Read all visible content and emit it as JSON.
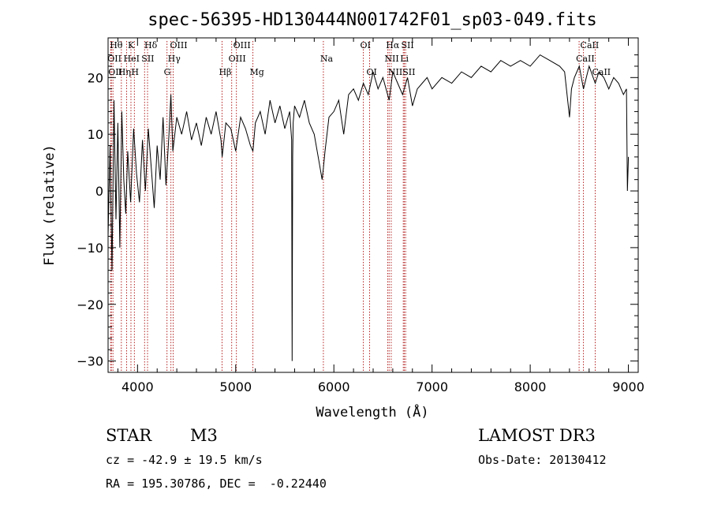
{
  "chart_data": {
    "type": "line",
    "title": "spec-56395-HD130444N001742F01_sp03-049.fits",
    "xlabel": "Wavelength (Å)",
    "ylabel": "Flux (relative)",
    "xlim": [
      3700,
      9100
    ],
    "ylim": [
      -32,
      27
    ],
    "xticks": [
      4000,
      5000,
      6000,
      7000,
      8000,
      9000
    ],
    "yticks": [
      -30,
      -20,
      -10,
      0,
      10,
      20
    ],
    "grid": false,
    "series": [
      {
        "x": [
          3700,
          3720,
          3740,
          3760,
          3780,
          3800,
          3820,
          3840,
          3860,
          3880,
          3900,
          3930,
          3960,
          3990,
          4020,
          4050,
          4080,
          4110,
          4140,
          4170,
          4200,
          4230,
          4260,
          4290,
          4320,
          4340,
          4360,
          4400,
          4450,
          4500,
          4550,
          4600,
          4650,
          4700,
          4750,
          4800,
          4850,
          4862,
          4900,
          4950,
          5000,
          5050,
          5100,
          5150,
          5175,
          5200,
          5250,
          5300,
          5350,
          5400,
          5450,
          5500,
          5550,
          5570,
          5575,
          5580,
          5585,
          5600,
          5650,
          5700,
          5750,
          5800,
          5850,
          5880,
          5893,
          5910,
          5950,
          6000,
          6050,
          6100,
          6150,
          6200,
          6250,
          6300,
          6350,
          6400,
          6450,
          6500,
          6563,
          6600,
          6650,
          6700,
          6750,
          6800,
          6850,
          6900,
          6950,
          7000,
          7100,
          7200,
          7300,
          7400,
          7500,
          7600,
          7700,
          7800,
          7900,
          8000,
          8100,
          8200,
          8300,
          8350,
          8400,
          8420,
          8450,
          8500,
          8542,
          8600,
          8662,
          8700,
          8750,
          8800,
          8850,
          8900,
          8950,
          8980,
          8990,
          9000
        ],
        "y": [
          -8,
          8,
          -14,
          16,
          -5,
          12,
          -10,
          14,
          2,
          -4,
          7,
          -2,
          11,
          3,
          -2,
          9,
          0,
          11,
          4,
          -3,
          8,
          2,
          13,
          1,
          10,
          17,
          7,
          13,
          10,
          14,
          9,
          12,
          8,
          13,
          10,
          14,
          9,
          6,
          12,
          11,
          7,
          13,
          11,
          8,
          7,
          12,
          14,
          10,
          16,
          12,
          15,
          11,
          14,
          9,
          -30,
          6,
          12,
          15,
          13,
          16,
          12,
          10,
          5,
          2,
          4,
          7,
          13,
          14,
          16,
          10,
          17,
          18,
          16,
          19,
          17,
          21,
          18,
          20,
          16,
          21,
          19,
          17,
          20,
          15,
          18,
          19,
          20,
          18,
          20,
          19,
          21,
          20,
          22,
          21,
          23,
          22,
          23,
          22,
          24,
          23,
          22,
          21,
          13,
          18,
          20,
          22,
          18,
          22,
          19,
          21,
          20,
          18,
          20,
          19,
          17,
          18,
          0,
          6
        ]
      }
    ],
    "lines": [
      {
        "x": 3750,
        "label": "Hθ",
        "row": 0
      },
      {
        "x": 3726,
        "label": "OII",
        "row": 1
      },
      {
        "x": 3734,
        "label": "OII",
        "row": 2
      },
      {
        "x": 3835,
        "label": "Hη",
        "row": 2
      },
      {
        "x": 3889,
        "label": "HeI",
        "row": 1
      },
      {
        "x": 3933,
        "label": "K",
        "row": 0
      },
      {
        "x": 3968,
        "label": "H",
        "row": 2
      },
      {
        "x": 4072,
        "label": "SII",
        "row": 1
      },
      {
        "x": 4102,
        "label": "Hδ",
        "row": 0
      },
      {
        "x": 4300,
        "label": "G",
        "row": 2
      },
      {
        "x": 4340,
        "label": "Hγ",
        "row": 1
      },
      {
        "x": 4363,
        "label": "OIII",
        "row": 0
      },
      {
        "x": 4861,
        "label": "Hβ",
        "row": 2
      },
      {
        "x": 4959,
        "label": "OIII",
        "row": 1
      },
      {
        "x": 5007,
        "label": "OIII",
        "row": 0
      },
      {
        "x": 5175,
        "label": "Mg",
        "row": 2
      },
      {
        "x": 5893,
        "label": "Na",
        "row": 1
      },
      {
        "x": 6300,
        "label": "OI",
        "row": 0
      },
      {
        "x": 6364,
        "label": "OI",
        "row": 2
      },
      {
        "x": 6548,
        "label": "NII",
        "row": 1
      },
      {
        "x": 6563,
        "label": "Hα",
        "row": 0
      },
      {
        "x": 6584,
        "label": "NII",
        "row": 2
      },
      {
        "x": 6707,
        "label": "Li",
        "row": 1
      },
      {
        "x": 6717,
        "label": "SII",
        "row": 0
      },
      {
        "x": 6731,
        "label": "SII",
        "row": 2
      },
      {
        "x": 8498,
        "label": "CaII",
        "row": 1
      },
      {
        "x": 8542,
        "label": "CaII",
        "row": 0
      },
      {
        "x": 8662,
        "label": "CaII",
        "row": 2
      }
    ]
  },
  "info": {
    "obj_type": "STAR",
    "subclass": "M3",
    "survey": "LAMOST DR3",
    "cz": "cz = -42.9 ± 19.5 km/s",
    "obs_date": "Obs-Date: 20130412",
    "radec": "RA = 195.30786, DEC =  -0.22440"
  },
  "colors": {
    "line_marker": "#b22222",
    "spectrum": "#000000"
  }
}
